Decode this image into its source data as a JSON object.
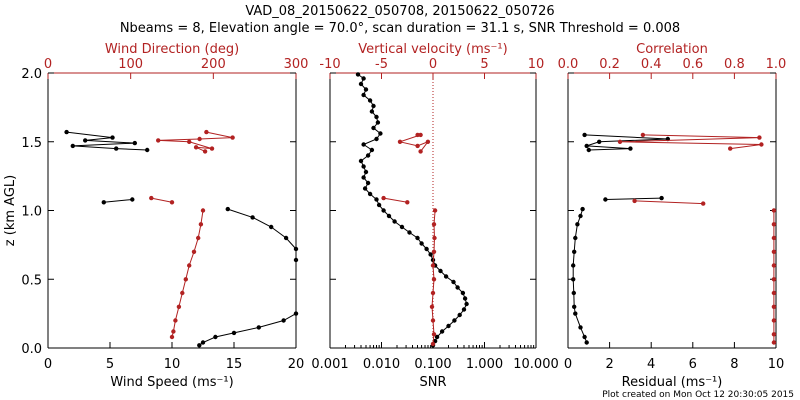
{
  "header": {
    "title_line1": "VAD_08_20150622_050708, 20150622_050726",
    "title_line2": "Nbeams = 8, Elevation angle = 70.0°, scan duration = 31.1 s, SNR Threshold = 0.008"
  },
  "footer": {
    "created": "Plot created on Mon Oct 12 20:30:05 2015"
  },
  "colors": {
    "black_series": "#000000",
    "red_series": "#b22222",
    "axis": "#000000"
  },
  "chart_data": [
    {
      "type": "line",
      "ylabel": "z (km AGL)",
      "ylim": [
        0,
        2
      ],
      "y_ticks": [
        "0.0",
        "0.5",
        "1.0",
        "1.5",
        "2.0"
      ],
      "xlabel": "Wind Speed (ms⁻¹)",
      "xlim": [
        0,
        20
      ],
      "x_ticks": [
        "0",
        "5",
        "10",
        "15",
        "20"
      ],
      "top_xlabel": "Wind Direction (deg)",
      "top_xlim": [
        0,
        360
      ],
      "top_x_ticks": [
        "0",
        "100",
        "200",
        "300"
      ],
      "series": [
        {
          "axis": "bottom",
          "segments": [
            [
              [
                1.5,
                1.57
              ],
              [
                5.2,
                1.53
              ],
              [
                3.0,
                1.51
              ],
              [
                7.0,
                1.49
              ],
              [
                2.0,
                1.47
              ],
              [
                5.5,
                1.45
              ],
              [
                8.0,
                1.44
              ]
            ],
            [
              [
                4.5,
                1.06
              ],
              [
                6.8,
                1.08
              ]
            ],
            [
              [
                14.5,
                1.01
              ],
              [
                16.5,
                0.95
              ],
              [
                18.0,
                0.88
              ],
              [
                19.2,
                0.8
              ],
              [
                20.0,
                0.72
              ],
              [
                20.0,
                0.64
              ]
            ],
            [
              [
                20.0,
                0.25
              ],
              [
                19.0,
                0.2
              ],
              [
                17.0,
                0.15
              ],
              [
                15.0,
                0.11
              ],
              [
                13.5,
                0.08
              ],
              [
                12.5,
                0.04
              ],
              [
                12.2,
                0.02
              ]
            ]
          ]
        },
        {
          "axis": "top",
          "segments": [
            [
              [
                230,
                1.57
              ],
              [
                268,
                1.53
              ],
              [
                220,
                1.52
              ],
              [
                160,
                1.51
              ],
              [
                205,
                1.5
              ],
              [
                238,
                1.45
              ],
              [
                215,
                1.46
              ],
              [
                228,
                1.43
              ]
            ],
            [
              [
                150,
                1.09
              ],
              [
                180,
                1.06
              ]
            ],
            [
              [
                225,
                1.0
              ],
              [
                222,
                0.9
              ],
              [
                218,
                0.8
              ],
              [
                212,
                0.7
              ],
              [
                205,
                0.6
              ],
              [
                200,
                0.5
              ],
              [
                195,
                0.4
              ],
              [
                190,
                0.3
              ],
              [
                185,
                0.2
              ],
              [
                182,
                0.12
              ],
              [
                180,
                0.08
              ]
            ]
          ]
        }
      ]
    },
    {
      "type": "line",
      "xlabel": "SNR",
      "xscale": "log",
      "xlim": [
        0.001,
        10
      ],
      "x_ticks": [
        "0.001",
        "0.010",
        "0.100",
        "1.000",
        "10.000"
      ],
      "top_xlabel": "Vertical velocity (ms⁻¹)",
      "top_xlim": [
        -10,
        10
      ],
      "top_x_ticks": [
        "-10",
        "-5",
        "0",
        "5",
        "10"
      ],
      "reference_line_top_x": 0,
      "series": [
        {
          "axis": "bottom",
          "segments": [
            [
              [
                0.0035,
                1.99
              ],
              [
                0.0045,
                1.96
              ],
              [
                0.004,
                1.92
              ],
              [
                0.005,
                1.88
              ],
              [
                0.0045,
                1.84
              ],
              [
                0.006,
                1.8
              ],
              [
                0.007,
                1.76
              ],
              [
                0.0065,
                1.72
              ],
              [
                0.008,
                1.68
              ],
              [
                0.0085,
                1.64
              ],
              [
                0.007,
                1.6
              ],
              [
                0.0095,
                1.56
              ],
              [
                0.008,
                1.52
              ],
              [
                0.0045,
                1.48
              ],
              [
                0.0065,
                1.44
              ],
              [
                0.0055,
                1.4
              ],
              [
                0.004,
                1.36
              ],
              [
                0.0045,
                1.32
              ],
              [
                0.005,
                1.28
              ],
              [
                0.0045,
                1.24
              ],
              [
                0.0055,
                1.2
              ],
              [
                0.0048,
                1.16
              ],
              [
                0.006,
                1.12
              ],
              [
                0.008,
                1.08
              ],
              [
                0.009,
                1.04
              ],
              [
                0.011,
                1.0
              ],
              [
                0.014,
                0.96
              ],
              [
                0.018,
                0.92
              ],
              [
                0.025,
                0.88
              ],
              [
                0.035,
                0.84
              ],
              [
                0.05,
                0.8
              ],
              [
                0.06,
                0.76
              ],
              [
                0.075,
                0.72
              ],
              [
                0.09,
                0.68
              ],
              [
                0.1,
                0.64
              ],
              [
                0.11,
                0.6
              ],
              [
                0.14,
                0.56
              ],
              [
                0.18,
                0.52
              ],
              [
                0.25,
                0.48
              ],
              [
                0.3,
                0.44
              ],
              [
                0.38,
                0.4
              ],
              [
                0.42,
                0.36
              ],
              [
                0.45,
                0.32
              ],
              [
                0.4,
                0.28
              ],
              [
                0.33,
                0.24
              ],
              [
                0.26,
                0.2
              ],
              [
                0.2,
                0.16
              ],
              [
                0.15,
                0.12
              ],
              [
                0.12,
                0.08
              ],
              [
                0.11,
                0.05
              ],
              [
                0.1,
                0.02
              ]
            ]
          ]
        },
        {
          "axis": "top",
          "segments": [
            [
              [
                -1.5,
                1.55
              ],
              [
                -1.2,
                1.55
              ],
              [
                -3.2,
                1.5
              ],
              [
                -1.5,
                1.47
              ],
              [
                -0.5,
                1.5
              ],
              [
                -1.2,
                1.43
              ]
            ],
            [
              [
                -4.8,
                1.09
              ],
              [
                -2.5,
                1.06
              ]
            ],
            [
              [
                0.2,
                1.0
              ],
              [
                0.1,
                0.9
              ],
              [
                0.15,
                0.8
              ],
              [
                0.1,
                0.7
              ],
              [
                0.0,
                0.6
              ],
              [
                0.1,
                0.5
              ],
              [
                0.0,
                0.4
              ],
              [
                -0.1,
                0.3
              ],
              [
                0.0,
                0.2
              ],
              [
                0.1,
                0.1
              ],
              [
                0.0,
                0.03
              ]
            ]
          ]
        }
      ]
    },
    {
      "type": "line",
      "xlabel": "Residual (ms⁻¹)",
      "xlim": [
        0,
        10
      ],
      "x_ticks": [
        "0",
        "2",
        "4",
        "6",
        "8",
        "10"
      ],
      "top_xlabel": "Correlation",
      "top_xlim": [
        0,
        1
      ],
      "top_x_ticks": [
        "0.0",
        "0.2",
        "0.4",
        "0.6",
        "0.8",
        "1.0"
      ],
      "series": [
        {
          "axis": "bottom",
          "segments": [
            [
              [
                0.8,
                1.55
              ],
              [
                4.8,
                1.52
              ],
              [
                1.5,
                1.5
              ],
              [
                0.9,
                1.47
              ],
              [
                3.0,
                1.45
              ],
              [
                1.0,
                1.44
              ]
            ],
            [
              [
                1.8,
                1.08
              ],
              [
                4.5,
                1.09
              ]
            ],
            [
              [
                0.7,
                1.01
              ],
              [
                0.6,
                0.96
              ],
              [
                0.45,
                0.9
              ],
              [
                0.35,
                0.8
              ],
              [
                0.3,
                0.7
              ],
              [
                0.25,
                0.6
              ],
              [
                0.25,
                0.5
              ],
              [
                0.28,
                0.4
              ],
              [
                0.3,
                0.3
              ],
              [
                0.35,
                0.25
              ],
              [
                0.6,
                0.15
              ],
              [
                0.8,
                0.08
              ],
              [
                0.9,
                0.04
              ]
            ]
          ]
        },
        {
          "axis": "top",
          "segments": [
            [
              [
                0.36,
                1.55
              ],
              [
                0.92,
                1.53
              ],
              [
                0.25,
                1.5
              ],
              [
                0.93,
                1.48
              ],
              [
                0.78,
                1.45
              ]
            ],
            [
              [
                0.32,
                1.07
              ],
              [
                0.65,
                1.05
              ]
            ],
            [
              [
                0.99,
                1.0
              ],
              [
                0.99,
                0.9
              ],
              [
                0.99,
                0.8
              ],
              [
                0.99,
                0.7
              ],
              [
                0.99,
                0.6
              ],
              [
                0.99,
                0.5
              ],
              [
                0.99,
                0.4
              ],
              [
                0.99,
                0.3
              ],
              [
                0.99,
                0.2
              ],
              [
                0.99,
                0.1
              ],
              [
                0.99,
                0.04
              ]
            ]
          ]
        }
      ]
    }
  ]
}
